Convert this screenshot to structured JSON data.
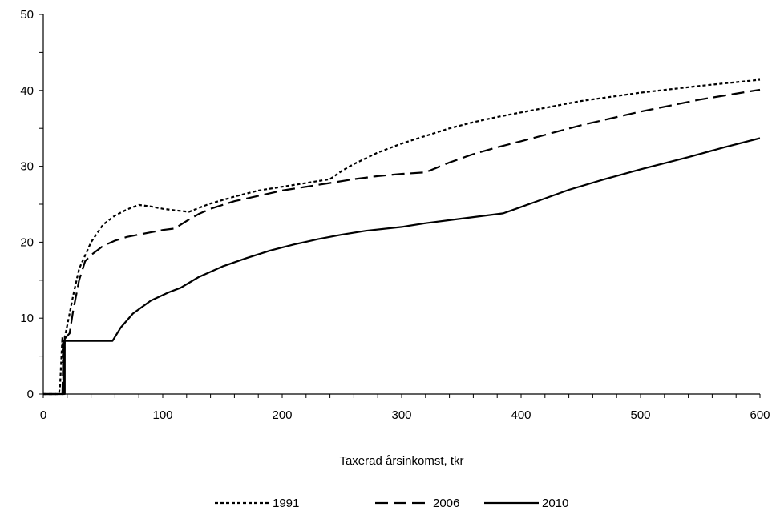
{
  "chart_data": {
    "type": "line",
    "title": "",
    "xlabel": "Taxerad årsinkomst, tkr",
    "ylabel": "",
    "xlim": [
      0,
      600
    ],
    "ylim": [
      0,
      50
    ],
    "xticks": [
      0,
      100,
      200,
      300,
      400,
      500,
      600
    ],
    "yticks": [
      0,
      10,
      20,
      30,
      40,
      50
    ],
    "grid": false,
    "legend_position": "bottom",
    "series": [
      {
        "name": "1991",
        "dash": "dotted",
        "points": [
          [
            0,
            0
          ],
          [
            13,
            0
          ],
          [
            14,
            1
          ],
          [
            16,
            7.5
          ],
          [
            17,
            0
          ],
          [
            18,
            7.5
          ],
          [
            20,
            9
          ],
          [
            25,
            13
          ],
          [
            30,
            16.5
          ],
          [
            40,
            20
          ],
          [
            50,
            22.3
          ],
          [
            60,
            23.5
          ],
          [
            70,
            24.3
          ],
          [
            80,
            24.9
          ],
          [
            90,
            24.7
          ],
          [
            100,
            24.4
          ],
          [
            110,
            24.2
          ],
          [
            122,
            24
          ],
          [
            130,
            24.5
          ],
          [
            140,
            25.1
          ],
          [
            160,
            26
          ],
          [
            180,
            26.8
          ],
          [
            200,
            27.3
          ],
          [
            220,
            27.8
          ],
          [
            240,
            28.3
          ],
          [
            250,
            29.4
          ],
          [
            260,
            30.3
          ],
          [
            280,
            31.8
          ],
          [
            300,
            33
          ],
          [
            320,
            34
          ],
          [
            340,
            35
          ],
          [
            360,
            35.8
          ],
          [
            380,
            36.5
          ],
          [
            400,
            37.1
          ],
          [
            450,
            38.6
          ],
          [
            500,
            39.7
          ],
          [
            550,
            40.6
          ],
          [
            600,
            41.4
          ]
        ]
      },
      {
        "name": "2006",
        "dash": "dashed",
        "points": [
          [
            0,
            0
          ],
          [
            16,
            0
          ],
          [
            17,
            7
          ],
          [
            19,
            7.5
          ],
          [
            22,
            8
          ],
          [
            25,
            11
          ],
          [
            30,
            15
          ],
          [
            35,
            17.5
          ],
          [
            40,
            18.3
          ],
          [
            50,
            19.5
          ],
          [
            60,
            20.2
          ],
          [
            70,
            20.7
          ],
          [
            80,
            21
          ],
          [
            90,
            21.3
          ],
          [
            100,
            21.6
          ],
          [
            110,
            21.8
          ],
          [
            120,
            22.8
          ],
          [
            130,
            23.7
          ],
          [
            140,
            24.4
          ],
          [
            160,
            25.4
          ],
          [
            180,
            26.1
          ],
          [
            200,
            26.8
          ],
          [
            240,
            27.8
          ],
          [
            260,
            28.3
          ],
          [
            280,
            28.7
          ],
          [
            300,
            29
          ],
          [
            320,
            29.2
          ],
          [
            340,
            30.5
          ],
          [
            360,
            31.6
          ],
          [
            380,
            32.5
          ],
          [
            400,
            33.3
          ],
          [
            450,
            35.4
          ],
          [
            500,
            37.2
          ],
          [
            550,
            38.8
          ],
          [
            600,
            40.1
          ]
        ]
      },
      {
        "name": "2010",
        "dash": "solid",
        "points": [
          [
            0,
            0
          ],
          [
            17,
            0
          ],
          [
            17,
            7
          ],
          [
            18,
            0
          ],
          [
            18,
            7
          ],
          [
            30,
            7
          ],
          [
            58,
            7
          ],
          [
            65,
            8.8
          ],
          [
            75,
            10.6
          ],
          [
            90,
            12.3
          ],
          [
            105,
            13.4
          ],
          [
            115,
            14
          ],
          [
            130,
            15.4
          ],
          [
            150,
            16.8
          ],
          [
            170,
            17.9
          ],
          [
            190,
            18.9
          ],
          [
            210,
            19.7
          ],
          [
            230,
            20.4
          ],
          [
            250,
            21
          ],
          [
            270,
            21.5
          ],
          [
            300,
            22
          ],
          [
            320,
            22.5
          ],
          [
            350,
            23.1
          ],
          [
            385,
            23.8
          ],
          [
            410,
            25.2
          ],
          [
            440,
            26.9
          ],
          [
            470,
            28.3
          ],
          [
            500,
            29.6
          ],
          [
            540,
            31.2
          ],
          [
            570,
            32.5
          ],
          [
            600,
            33.7
          ]
        ]
      }
    ]
  }
}
